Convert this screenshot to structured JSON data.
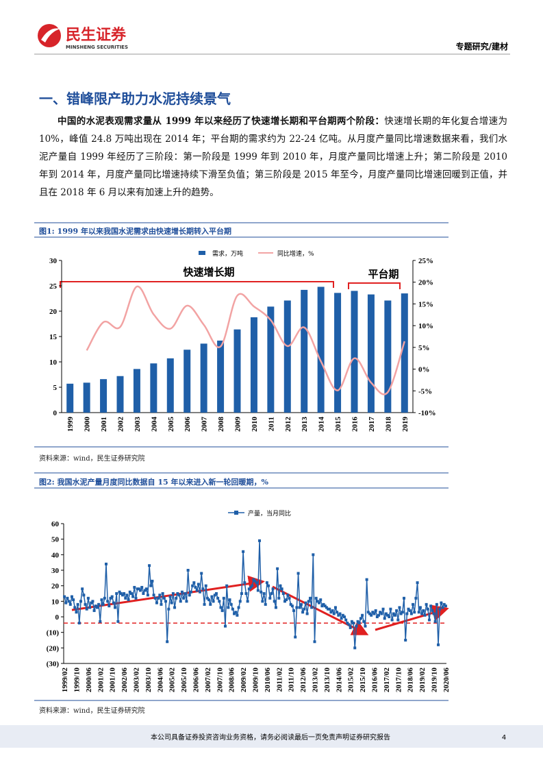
{
  "header": {
    "brand": "民生证券",
    "brand_en": "MINSHENG SECURITIES",
    "section": "专题研究/建材"
  },
  "section_title": "一、错峰限产助力水泥持续景气",
  "paragraph": {
    "lead": "中国的水泥表观需求量从 1999 年以来经历了快速增长期和平台期两个阶段：",
    "body": "快速增长期的年化复合增速为 10%，峰值 24.8 万吨出现在 2014 年；平台期的需求约为 22-24 亿吨。从月度产量同比增速数据来看，我们水泥产量自 1999 年经历了三阶段：第一阶段是 1999 年到 2010 年，月度产量同比增速上升；第二阶段是 2010 年到 2014 年，月度产量同比增速持续下滑至负值；第三阶段是 2015 年至今，月度产量同比增速回暖到正值，并且在 2018 年 6 月以来有加速上升的趋势。"
  },
  "chart_data": [
    {
      "type": "combo",
      "title": "图1: 1999 年以来我国水泥需求由快速增长期转入平台期",
      "source": "资料来源：wind，民生证券研究院",
      "categories": [
        "1999",
        "2000",
        "2001",
        "2002",
        "2003",
        "2004",
        "2005",
        "2006",
        "2007",
        "2008",
        "2009",
        "2010",
        "2011",
        "2012",
        "2013",
        "2014",
        "2015",
        "2016",
        "2017",
        "2018",
        "2019"
      ],
      "series": [
        {
          "name": "需求，万吨",
          "type": "bar",
          "color": "#1f5fa8",
          "values": [
            5.7,
            5.9,
            6.6,
            7.2,
            8.6,
            9.7,
            10.7,
            12.4,
            13.6,
            14.2,
            16.4,
            18.8,
            20.9,
            22.1,
            24.2,
            24.8,
            23.6,
            24.0,
            23.3,
            22.1,
            23.5
          ]
        },
        {
          "name": "同比增速，%",
          "type": "line",
          "axis": "y2",
          "color": "#f2a3a3",
          "values": [
            null,
            4.3,
            10.8,
            9.7,
            19.0,
            12.6,
            9.3,
            14.6,
            10.2,
            5.2,
            16.9,
            14.4,
            11.3,
            5.3,
            9.6,
            1.8,
            -4.9,
            2.5,
            -3.1,
            -5.3,
            6.4
          ]
        }
      ],
      "ylim": [
        0,
        30
      ],
      "yticks": [
        0,
        5,
        10,
        15,
        20,
        25,
        30
      ],
      "y2lim": [
        -10,
        25
      ],
      "y2ticks": [
        {
          "value": -10,
          "label": "-10%"
        },
        {
          "value": -5,
          "label": "-5%"
        },
        {
          "value": 0,
          "label": "0%"
        },
        {
          "value": 5,
          "label": "5%"
        },
        {
          "value": 10,
          "label": "10%"
        },
        {
          "value": 15,
          "label": "15%"
        },
        {
          "value": 20,
          "label": "20%"
        },
        {
          "value": 25,
          "label": "25%"
        }
      ],
      "annotations": [
        "快速增长期",
        "平台期"
      ],
      "grid": false
    },
    {
      "type": "line",
      "title": "图2: 我国水泥产量月度同比数据自 15 年以来进入新一轮回暖期，%",
      "source": "资料来源：wind，民生证券研究院",
      "categories": [
        "1999/02",
        null,
        null,
        null,
        null,
        null,
        null,
        null,
        "1999/10",
        null,
        null,
        null,
        null,
        null,
        null,
        null,
        "2000/06",
        null,
        null,
        null,
        null,
        null,
        null,
        null,
        "2001/02",
        null,
        null,
        null,
        null,
        null,
        null,
        null,
        "2001/10",
        null,
        null,
        null,
        null,
        null,
        null,
        null,
        "2002/06",
        null,
        null,
        null,
        null,
        null,
        null,
        null,
        "2003/02",
        null,
        null,
        null,
        null,
        null,
        null,
        null,
        "2003/10",
        null,
        null,
        null,
        null,
        null,
        null,
        null,
        "2004/06",
        null,
        null,
        null,
        null,
        null,
        null,
        null,
        "2005/02",
        null,
        null,
        null,
        null,
        null,
        null,
        null,
        "2005/10",
        null,
        null,
        null,
        null,
        null,
        null,
        null,
        "2006/06",
        null,
        null,
        null,
        null,
        null,
        null,
        null,
        "2007/02",
        null,
        null,
        null,
        null,
        null,
        null,
        null,
        "2007/10",
        null,
        null,
        null,
        null,
        null,
        null,
        null,
        "2008/06",
        null,
        null,
        null,
        null,
        null,
        null,
        null,
        "2009/02",
        null,
        null,
        null,
        null,
        null,
        null,
        null,
        "2009/10",
        null,
        null,
        null,
        null,
        null,
        null,
        null,
        "2010/06",
        null,
        null,
        null,
        null,
        null,
        null,
        null,
        "2011/02",
        null,
        null,
        null,
        null,
        null,
        null,
        null,
        "2011/10",
        null,
        null,
        null,
        null,
        null,
        null,
        null,
        "2012/06",
        null,
        null,
        null,
        null,
        null,
        null,
        null,
        "2013/02",
        null,
        null,
        null,
        null,
        null,
        null,
        null,
        "2013/10",
        null,
        null,
        null,
        null,
        null,
        null,
        null,
        "2014/06",
        null,
        null,
        null,
        null,
        null,
        null,
        null,
        "2015/02",
        null,
        null,
        null,
        null,
        null,
        null,
        null,
        "2015/10",
        null,
        null,
        null,
        null,
        null,
        null,
        null,
        "2016/06",
        null,
        null,
        null,
        null,
        null,
        null,
        null,
        "2017/02",
        null,
        null,
        null,
        null,
        null,
        null,
        null,
        "2017/10",
        null,
        null,
        null,
        null,
        null,
        null,
        null,
        "2018/06",
        null,
        null,
        null,
        null,
        null,
        null,
        null,
        "2019/02",
        null,
        null,
        null,
        null,
        null,
        null,
        null,
        "2019/10",
        null,
        null,
        null,
        null,
        null,
        null,
        null,
        "2020/06"
      ],
      "series": [
        {
          "name": "产量，当月同比",
          "color": "#1f5fa8",
          "marker": "square",
          "values": [
            13,
            9,
            12,
            10,
            8,
            13,
            11,
            6,
            3,
            8,
            -4,
            10,
            18,
            14,
            8,
            5,
            12,
            6,
            9,
            10,
            4,
            7,
            6,
            8,
            -3,
            11,
            8,
            12,
            34,
            10,
            7,
            12,
            13,
            9,
            6,
            15,
            -3,
            16,
            15,
            14,
            15,
            12,
            14,
            11,
            16,
            15,
            13,
            19,
            12,
            18,
            18,
            17,
            19,
            15,
            17,
            18,
            14,
            33,
            20,
            23,
            14,
            12,
            9,
            12,
            14,
            8,
            15,
            12,
            10,
            -16,
            5,
            13,
            9,
            15,
            6,
            12,
            15,
            14,
            10,
            16,
            12,
            15,
            10,
            30,
            14,
            16,
            20,
            22,
            19,
            17,
            21,
            16,
            28,
            18,
            8,
            20,
            12,
            11,
            8,
            13,
            10,
            14,
            15,
            12,
            10,
            6,
            4,
            12,
            -6,
            20,
            6,
            11,
            8,
            5,
            2,
            3,
            1,
            6,
            10,
            15,
            42,
            22,
            15,
            10,
            18,
            19,
            20,
            24,
            23,
            22,
            17,
            49,
            16,
            10,
            15,
            8,
            22,
            20,
            12,
            15,
            18,
            10,
            6,
            31,
            12,
            20,
            18,
            15,
            10,
            11,
            14,
            12,
            8,
            7,
            4,
            -13,
            6,
            28,
            6,
            8,
            3,
            5,
            9,
            2,
            10,
            12,
            6,
            40,
            -16,
            12,
            10,
            9,
            11,
            7,
            8,
            7,
            6,
            5,
            5,
            3,
            4,
            2,
            6,
            3,
            1,
            2,
            -1,
            1,
            0,
            -2,
            -4,
            -5,
            -7,
            -3,
            -4,
            -20,
            -6,
            -3,
            -4,
            -1,
            1,
            -3,
            -6,
            24,
            3,
            2,
            1,
            3,
            2,
            4,
            0,
            1,
            3,
            2,
            5,
            -1,
            2,
            1,
            0,
            5,
            -2,
            2,
            1,
            4,
            -2,
            6,
            2,
            3,
            12,
            -15,
            2,
            5,
            4,
            2,
            8,
            3,
            12,
            22,
            3,
            6,
            2,
            4,
            1,
            8,
            5,
            -2,
            7,
            4,
            2,
            -3,
            8,
            -18,
            5,
            9,
            6,
            8,
            7
          ]
        }
      ],
      "ylim": [
        -30,
        60
      ],
      "yticks": [
        60,
        50,
        40,
        30,
        20,
        10,
        0,
        {
          "value": -10,
          "label": "(10)"
        },
        {
          "value": -20,
          "label": "(20)"
        },
        {
          "value": -30,
          "label": "(30)"
        }
      ],
      "reference_line": {
        "value": -4,
        "color": "#e02020"
      },
      "grid": false
    }
  ],
  "footer": {
    "disclaimer": "本公司具备证券投资咨询业务资格，请务必阅读最后一页免责声明证券研究报告",
    "page": "4"
  }
}
